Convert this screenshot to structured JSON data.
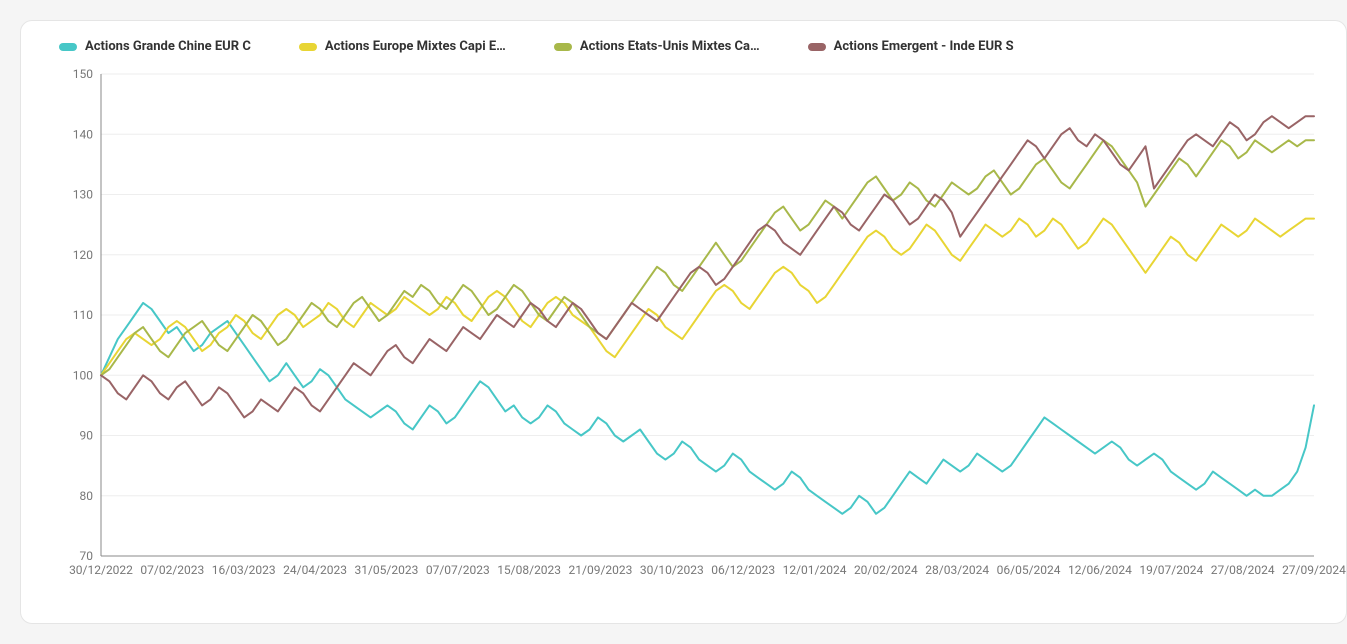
{
  "chart": {
    "type": "line",
    "background_color": "#ffffff",
    "card_border_color": "#e5e5e5",
    "grid_color": "#eeeeee",
    "axis_color": "#888888",
    "label_color": "#777777",
    "label_fontsize": 12,
    "legend_fontsize": 13,
    "legend_fontweight": 700,
    "line_width": 2,
    "ylim": [
      70,
      150
    ],
    "ytick_step": 10,
    "yticks": [
      70,
      80,
      90,
      100,
      110,
      120,
      130,
      140,
      150
    ],
    "xticks": [
      "30/12/2022",
      "07/02/2023",
      "16/03/2023",
      "24/04/2023",
      "31/05/2023",
      "07/07/2023",
      "15/08/2023",
      "21/09/2023",
      "30/10/2023",
      "06/12/2023",
      "12/01/2024",
      "20/02/2024",
      "28/03/2024",
      "06/05/2024",
      "12/06/2024",
      "19/07/2024",
      "27/08/2024",
      "27/09/2024"
    ],
    "series": [
      {
        "id": "china",
        "label": "Actions Grande Chine EUR C",
        "color": "#47c7c7",
        "data": [
          100,
          103,
          106,
          108,
          110,
          112,
          111,
          109,
          107,
          108,
          106,
          104,
          105,
          107,
          108,
          109,
          107,
          105,
          103,
          101,
          99,
          100,
          102,
          100,
          98,
          99,
          101,
          100,
          98,
          96,
          95,
          94,
          93,
          94,
          95,
          94,
          92,
          91,
          93,
          95,
          94,
          92,
          93,
          95,
          97,
          99,
          98,
          96,
          94,
          95,
          93,
          92,
          93,
          95,
          94,
          92,
          91,
          90,
          91,
          93,
          92,
          90,
          89,
          90,
          91,
          89,
          87,
          86,
          87,
          89,
          88,
          86,
          85,
          84,
          85,
          87,
          86,
          84,
          83,
          82,
          81,
          82,
          84,
          83,
          81,
          80,
          79,
          78,
          77,
          78,
          80,
          79,
          77,
          78,
          80,
          82,
          84,
          83,
          82,
          84,
          86,
          85,
          84,
          85,
          87,
          86,
          85,
          84,
          85,
          87,
          89,
          91,
          93,
          92,
          91,
          90,
          89,
          88,
          87,
          88,
          89,
          88,
          86,
          85,
          86,
          87,
          86,
          84,
          83,
          82,
          81,
          82,
          84,
          83,
          82,
          81,
          80,
          81,
          80,
          80,
          81,
          82,
          84,
          88,
          95
        ]
      },
      {
        "id": "europe",
        "label": "Actions Europe Mixtes Capi E…",
        "color": "#e8d534",
        "data": [
          100,
          102,
          104,
          106,
          107,
          106,
          105,
          106,
          108,
          109,
          108,
          106,
          104,
          105,
          107,
          108,
          110,
          109,
          107,
          106,
          108,
          110,
          111,
          110,
          108,
          109,
          110,
          112,
          111,
          109,
          108,
          110,
          112,
          111,
          110,
          111,
          113,
          112,
          111,
          110,
          111,
          113,
          112,
          110,
          109,
          111,
          113,
          114,
          113,
          111,
          109,
          108,
          110,
          112,
          113,
          112,
          110,
          109,
          108,
          106,
          104,
          103,
          105,
          107,
          109,
          111,
          110,
          108,
          107,
          106,
          108,
          110,
          112,
          114,
          115,
          114,
          112,
          111,
          113,
          115,
          117,
          118,
          117,
          115,
          114,
          112,
          113,
          115,
          117,
          119,
          121,
          123,
          124,
          123,
          121,
          120,
          121,
          123,
          125,
          124,
          122,
          120,
          119,
          121,
          123,
          125,
          124,
          123,
          124,
          126,
          125,
          123,
          124,
          126,
          125,
          123,
          121,
          122,
          124,
          126,
          125,
          123,
          121,
          119,
          117,
          119,
          121,
          123,
          122,
          120,
          119,
          121,
          123,
          125,
          124,
          123,
          124,
          126,
          125,
          124,
          123,
          124,
          125,
          126,
          126
        ]
      },
      {
        "id": "us",
        "label": "Actions Etats-Unis Mixtes Ca…",
        "color": "#a8b84a",
        "data": [
          100,
          101,
          103,
          105,
          107,
          108,
          106,
          104,
          103,
          105,
          107,
          108,
          109,
          107,
          105,
          104,
          106,
          108,
          110,
          109,
          107,
          105,
          106,
          108,
          110,
          112,
          111,
          109,
          108,
          110,
          112,
          113,
          111,
          109,
          110,
          112,
          114,
          113,
          115,
          114,
          112,
          111,
          113,
          115,
          114,
          112,
          110,
          111,
          113,
          115,
          114,
          112,
          110,
          109,
          111,
          113,
          112,
          110,
          108,
          107,
          106,
          108,
          110,
          112,
          114,
          116,
          118,
          117,
          115,
          114,
          116,
          118,
          120,
          122,
          120,
          118,
          119,
          121,
          123,
          125,
          127,
          128,
          126,
          124,
          125,
          127,
          129,
          128,
          126,
          128,
          130,
          132,
          133,
          131,
          129,
          130,
          132,
          131,
          129,
          128,
          130,
          132,
          131,
          130,
          131,
          133,
          134,
          132,
          130,
          131,
          133,
          135,
          136,
          134,
          132,
          131,
          133,
          135,
          137,
          139,
          138,
          136,
          134,
          132,
          128,
          130,
          132,
          134,
          136,
          135,
          133,
          135,
          137,
          139,
          138,
          136,
          137,
          139,
          138,
          137,
          138,
          139,
          138,
          139,
          139
        ]
      },
      {
        "id": "india",
        "label": "Actions Emergent - Inde EUR S",
        "color": "#996466",
        "data": [
          100,
          99,
          97,
          96,
          98,
          100,
          99,
          97,
          96,
          98,
          99,
          97,
          95,
          96,
          98,
          97,
          95,
          93,
          94,
          96,
          95,
          94,
          96,
          98,
          97,
          95,
          94,
          96,
          98,
          100,
          102,
          101,
          100,
          102,
          104,
          105,
          103,
          102,
          104,
          106,
          105,
          104,
          106,
          108,
          107,
          106,
          108,
          110,
          109,
          108,
          110,
          112,
          111,
          109,
          108,
          110,
          112,
          111,
          109,
          107,
          106,
          108,
          110,
          112,
          111,
          110,
          109,
          111,
          113,
          115,
          117,
          118,
          117,
          115,
          116,
          118,
          120,
          122,
          124,
          125,
          124,
          122,
          121,
          120,
          122,
          124,
          126,
          128,
          127,
          125,
          124,
          126,
          128,
          130,
          129,
          127,
          125,
          126,
          128,
          130,
          129,
          127,
          123,
          125,
          127,
          129,
          131,
          133,
          135,
          137,
          139,
          138,
          136,
          138,
          140,
          141,
          139,
          138,
          140,
          139,
          137,
          135,
          134,
          136,
          138,
          131,
          133,
          135,
          137,
          139,
          140,
          139,
          138,
          140,
          142,
          141,
          139,
          140,
          142,
          143,
          142,
          141,
          142,
          143,
          143
        ]
      }
    ]
  }
}
